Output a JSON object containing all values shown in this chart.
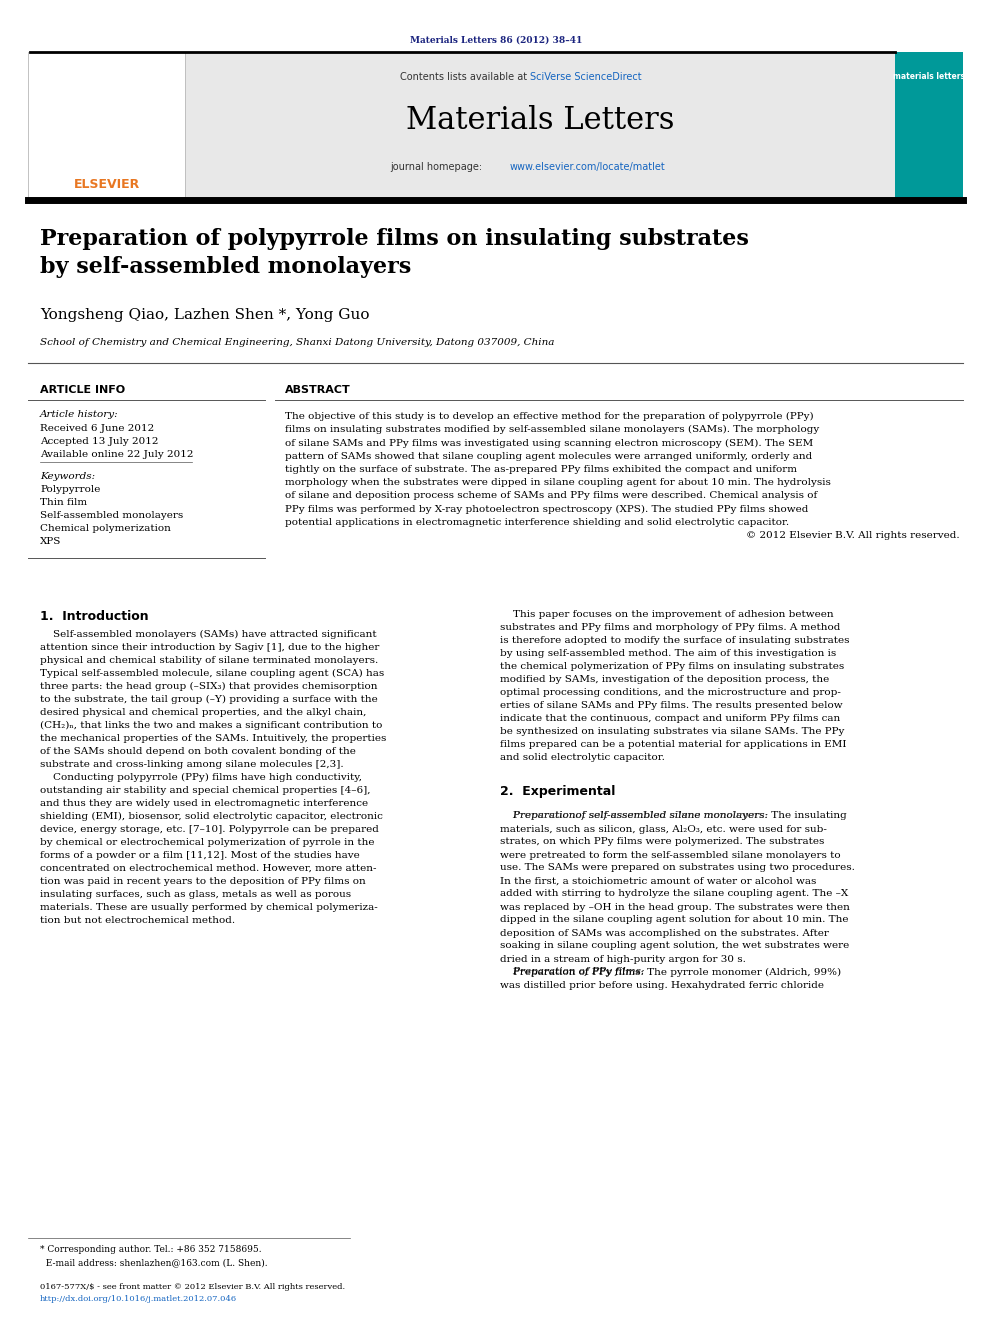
{
  "page_citation": "Materials Letters 86 (2012) 38–41",
  "journal_name": "Materials Letters",
  "contents_line": "Contents lists available at SciVerse ScienceDirect",
  "journal_homepage": "journal homepage: www.elsevier.com/locate/matlet",
  "paper_title": "Preparation of polypyrrole films on insulating substrates\nby self-assembled monolayers",
  "authors": "Yongsheng Qiao, Lazhen Shen *, Yong Guo",
  "affiliation": "School of Chemistry and Chemical Engineering, Shanxi Datong University, Datong 037009, China",
  "article_info_header": "ARTICLE INFO",
  "abstract_header": "ABSTRACT",
  "article_history_label": "Article history:",
  "received": "Received 6 June 2012",
  "accepted": "Accepted 13 July 2012",
  "available": "Available online 22 July 2012",
  "keywords_label": "Keywords:",
  "keywords": [
    "Polypyrrole",
    "Thin film",
    "Self-assembled monolayers",
    "Chemical polymerization",
    "XPS"
  ],
  "abstract_lines": [
    "The objective of this study is to develop an effective method for the preparation of polypyrrole (PPy)",
    "films on insulating substrates modified by self-assembled silane monolayers (SAMs). The morphology",
    "of silane SAMs and PPy films was investigated using scanning electron microscopy (SEM). The SEM",
    "pattern of SAMs showed that silane coupling agent molecules were arranged uniformly, orderly and",
    "tightly on the surface of substrate. The as-prepared PPy films exhibited the compact and uniform",
    "morphology when the substrates were dipped in silane coupling agent for about 10 min. The hydrolysis",
    "of silane and deposition process scheme of SAMs and PPy films were described. Chemical analysis of",
    "PPy films was performed by X-ray photoelectron spectroscopy (XPS). The studied PPy films showed",
    "potential applications in electromagnetic interference shielding and solid electrolytic capacitor.",
    "© 2012 Elsevier B.V. All rights reserved."
  ],
  "section1_title": "1.  Introduction",
  "section2_title": "2.  Experimental",
  "left_col_lines": [
    "    Self-assembled monolayers (SAMs) have attracted significant",
    "attention since their introduction by Sagiv [1], due to the higher",
    "physical and chemical stability of silane terminated monolayers.",
    "Typical self-assembled molecule, silane coupling agent (SCA) has",
    "three parts: the head group (–SIX₃) that provides chemisorption",
    "to the substrate, the tail group (–Y) providing a surface with the",
    "desired physical and chemical properties, and the alkyl chain,",
    "(CH₂)ₙ, that links the two and makes a significant contribution to",
    "the mechanical properties of the SAMs. Intuitively, the properties",
    "of the SAMs should depend on both covalent bonding of the",
    "substrate and cross-linking among silane molecules [2,3].",
    "    Conducting polypyrrole (PPy) films have high conductivity,",
    "outstanding air stability and special chemical properties [4–6],",
    "and thus they are widely used in electromagnetic interference",
    "shielding (EMI), biosensor, solid electrolytic capacitor, electronic",
    "device, energy storage, etc. [7–10]. Polypyrrole can be prepared",
    "by chemical or electrochemical polymerization of pyrrole in the",
    "forms of a powder or a film [11,12]. Most of the studies have",
    "concentrated on electrochemical method. However, more atten-",
    "tion was paid in recent years to the deposition of PPy films on",
    "insulating surfaces, such as glass, metals as well as porous",
    "materials. These are usually performed by chemical polymeriza-",
    "tion but not electrochemical method."
  ],
  "right_col_lines": [
    "    This paper focuses on the improvement of adhesion between",
    "substrates and PPy films and morphology of PPy films. A method",
    "is therefore adopted to modify the surface of insulating substrates",
    "by using self-assembled method. The aim of this investigation is",
    "the chemical polymerization of PPy films on insulating substrates",
    "modified by SAMs, investigation of the deposition process, the",
    "optimal processing conditions, and the microstructure and prop-",
    "erties of silane SAMs and PPy films. The results presented below",
    "indicate that the continuous, compact and uniform PPy films can",
    "be synthesized on insulating substrates via silane SAMs. The PPy",
    "films prepared can be a potential material for applications in EMI",
    "and solid electrolytic capacitor."
  ],
  "right_col2_lines": [
    "    Preparationof self-assembled silane monolayers: The insulating",
    "materials, such as silicon, glass, Al₂O₃, etc. were used for sub-",
    "strates, on which PPy films were polymerized. The substrates",
    "were pretreated to form the self-assembled silane monolayers to",
    "use. The SAMs were prepared on substrates using two procedures.",
    "In the first, a stoichiometric amount of water or alcohol was",
    "added with stirring to hydrolyze the silane coupling agent. The –X",
    "was replaced by –OH in the head group. The substrates were then",
    "dipped in the silane coupling agent solution for about 10 min. The",
    "deposition of SAMs was accomplished on the substrates. After",
    "soaking in silane coupling agent solution, the wet substrates were",
    "dried in a stream of high-purity argon for 30 s.",
    "    Preparation of PPy films: The pyrrole monomer (Aldrich, 99%)",
    "was distilled prior before using. Hexahydrated ferric chloride"
  ],
  "right_col2_italic_prefix": "    Preparationof self-assembled silane monolayers:",
  "right_col2_italic2_prefix": "    Preparation of PPy films:",
  "footnote1": "* Corresponding author. Tel.: +86 352 7158695.",
  "footnote2": "  E-mail address: shenlazhen@163.com (L. Shen).",
  "footer_line": "0167-577X/$ - see front matter © 2012 Elsevier B.V. All rights reserved.",
  "footer_doi": "http://dx.doi.org/10.1016/j.matlet.2012.07.046",
  "bg_color": "#ffffff",
  "citation_color": "#1a237e",
  "link_color": "#1565c0",
  "elsevier_color": "#E87722"
}
